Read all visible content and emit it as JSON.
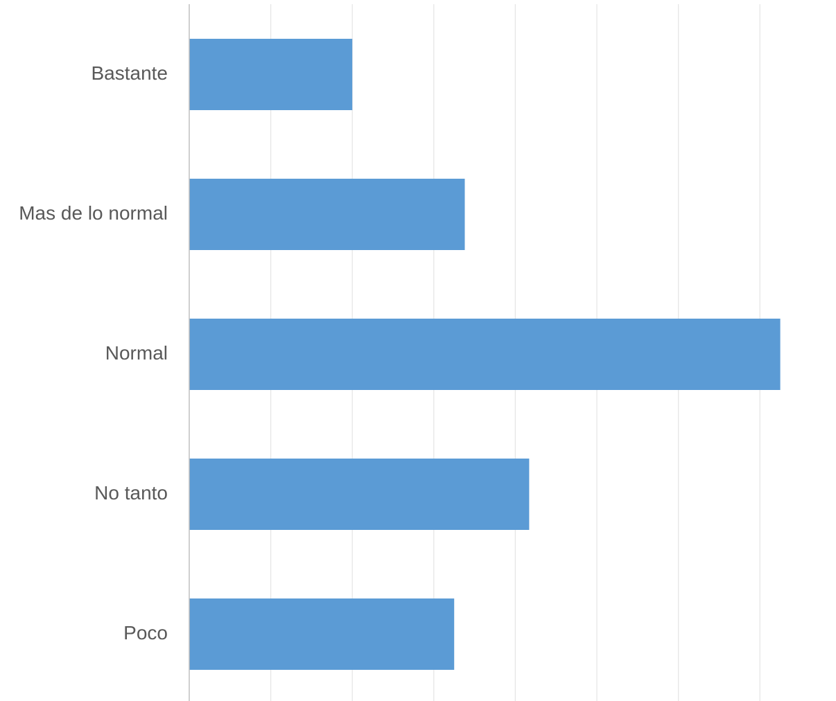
{
  "chart_data": {
    "type": "bar",
    "orientation": "horizontal",
    "categories": [
      "Bastante",
      "Mas de lo normal",
      "Normal",
      "No tanto",
      "Poco"
    ],
    "values": [
      2.0,
      3.38,
      7.25,
      4.17,
      3.25
    ],
    "xlim": [
      0,
      7.5
    ],
    "grid": true,
    "legend": "none",
    "colors": {
      "bar": "#5B9BD5",
      "gridline": "#E6E6E6",
      "axis": "#BFBFBF",
      "label": "#595959"
    }
  }
}
